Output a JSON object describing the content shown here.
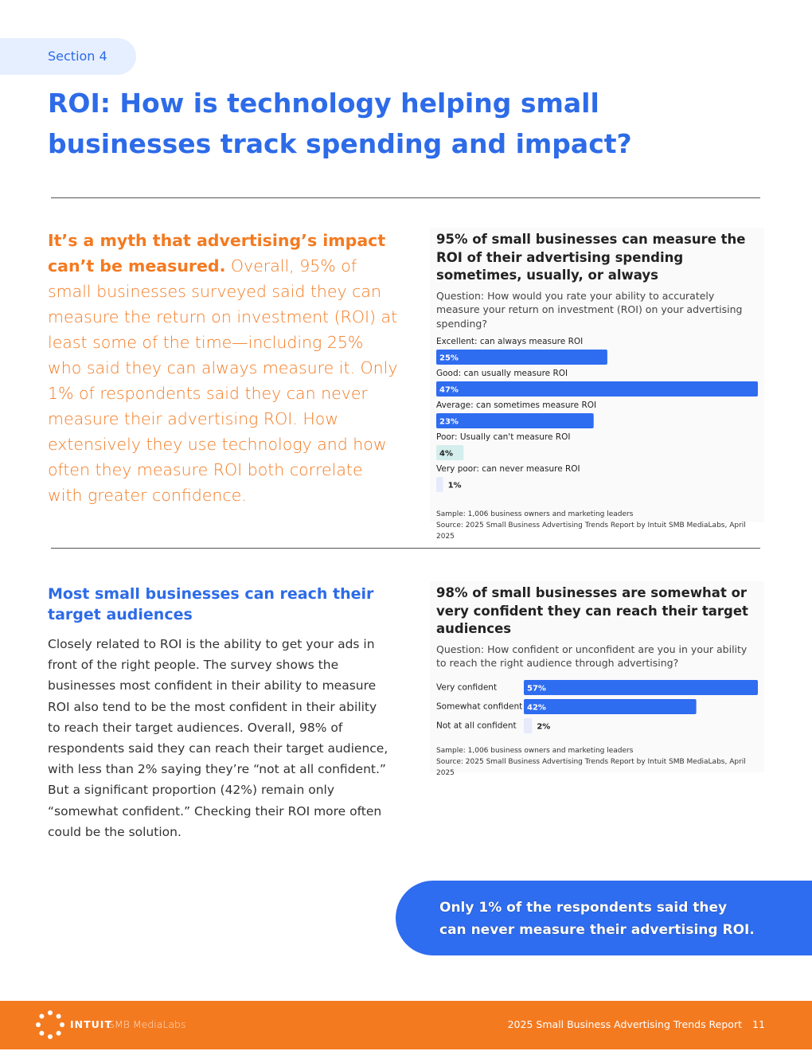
{
  "section_label": "Section 4",
  "title": "ROI: How is technology helping small businesses track spending and impact?",
  "intro": {
    "lead": "It’s a myth that advertising’s impact can’t be measured.",
    "body": "Overall, 95% of small businesses surveyed said they can measure the return on investment (ROI) at least some of the time—including 25% who said they can always measure it. Only 1% of respondents said they can never measure their advertising ROI. How extensively they use technology and how often they measure ROI both correlate with greater confidence."
  },
  "subsection": {
    "heading": "Most small businesses can reach their target audiences",
    "body": "Closely related to ROI is the ability to get your ads in front of the right people. The survey shows the businesses most confident in their ability to measure ROI also tend to be the most confident in their ability to reach their target audiences. Overall, 98% of respondents said they can reach their target audience, with less than 2% saying they’re “not at all confident.” But a significant proportion (42%) remain only “somewhat confident.” Checking their ROI more often could be the solution."
  },
  "callout": "Only 1% of the respondents said they can never measure their advertising ROI.",
  "footer": {
    "brand": "INTUIT",
    "brand_sub": "SMB MediaLabs",
    "report": "2025 Small Business Advertising Trends Report",
    "page": "11"
  },
  "chart_data": [
    {
      "type": "bar",
      "title": "95% of small businesses can measure the ROI of their advertising spending sometimes, usually, or always",
      "subtitle": "Question: How would you rate your ability to accurately measure your return on investment (ROI) on your advertising spending?",
      "categories": [
        "Excellent: can always measure ROI",
        "Good: can usually measure ROI",
        "Average: can sometimes measure ROI",
        "Poor: Usually can't measure ROI",
        "Very poor: can never measure ROI"
      ],
      "values": [
        25,
        47,
        23,
        4,
        1
      ],
      "value_labels": [
        "25%",
        "47%",
        "23%",
        "4%",
        "1%"
      ],
      "colors": [
        "#2e6cf0",
        "#2e6cf0",
        "#2e6cf0",
        "#d3eeec",
        "#e6eafb"
      ],
      "notes": [
        "Sample: 1,006 business owners and marketing leaders",
        "Source: 2025 Small Business Advertising Trends Report by Intuit SMB MediaLabs, April 2025"
      ]
    },
    {
      "type": "bar",
      "title": "98% of small businesses are somewhat or very confident they can reach their target audiences",
      "subtitle": "Question: How confident or unconfident are you in your ability to reach the right audience through advertising?",
      "categories": [
        "Very confident",
        "Somewhat confident",
        "Not at all confident"
      ],
      "values": [
        57,
        42,
        2
      ],
      "value_labels": [
        "57%",
        "42%",
        "2%"
      ],
      "colors": [
        "#2e6cf0",
        "#2e6cf0",
        "#e6eafb"
      ],
      "notes": [
        "Sample: 1,006 business owners and marketing leaders",
        "Source: 2025 Small Business Advertising Trends Report by Intuit SMB MediaLabs, April 2025"
      ]
    }
  ]
}
